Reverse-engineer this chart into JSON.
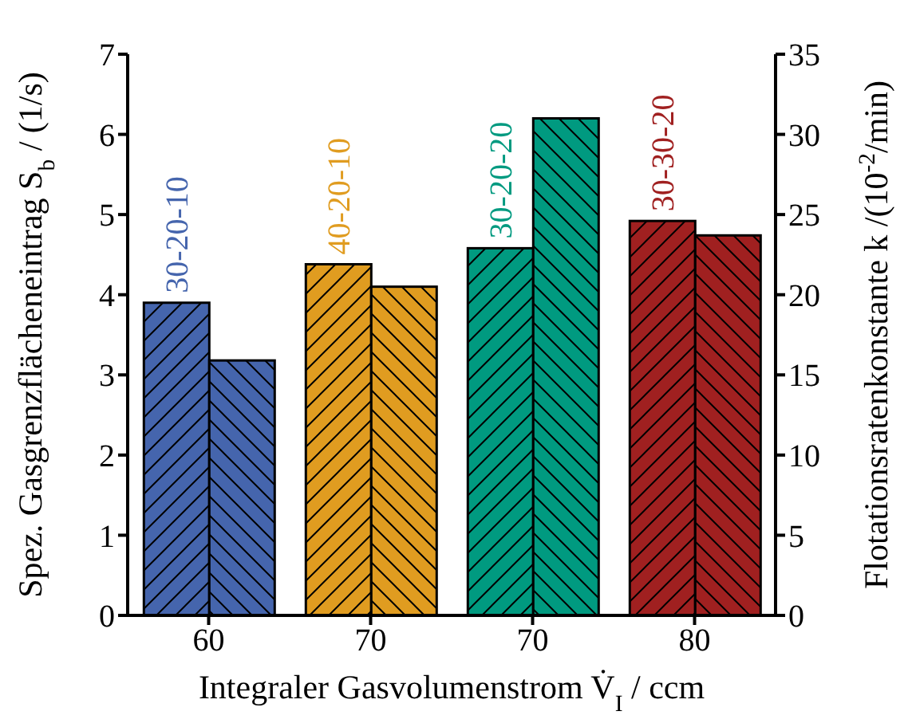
{
  "chart_data": {
    "type": "bar",
    "xlabel": "Integraler Gasvolumenstrom V̇$_{I}$ / ccm",
    "ylabel": "Spez. Gasgrenzflächeneintrag S$_{b}$ / (1/s)",
    "y2label": "Flotationsratenkonstante k /(10$^{-2}$/min)",
    "categories": [
      "60",
      "70",
      "70",
      "80"
    ],
    "series": [
      {
        "colors": [
          "#4565ad",
          "#e09c20",
          "#009a80",
          "#a02020"
        ],
        "values": [
          3.9,
          4.38,
          4.58,
          4.92
        ]
      },
      {
        "axis": "y2",
        "colors": [
          "#4565ad",
          "#e09c20",
          "#009a80",
          "#a02020"
        ],
        "values": [
          15.9,
          20.5,
          31.0,
          23.7
        ]
      }
    ],
    "annotations": [
      "30-20-10",
      "40-20-10",
      "30-20-20",
      "30-30-20"
    ],
    "ylim": [
      0,
      7
    ],
    "yticks": [
      0,
      1,
      2,
      3,
      4,
      5,
      6,
      7
    ],
    "y2lim": [
      0,
      35
    ],
    "y2ticks": [
      0,
      5,
      10,
      15,
      20,
      25,
      30,
      35
    ],
    "grid": false,
    "legend": false
  }
}
